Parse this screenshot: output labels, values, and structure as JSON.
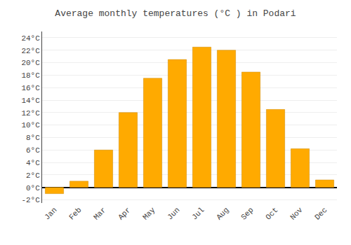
{
  "chart_data": {
    "type": "bar",
    "title": "Average monthly temperatures (°C ) in Podari",
    "categories": [
      "Jan",
      "Feb",
      "Mar",
      "Apr",
      "May",
      "Jun",
      "Jul",
      "Aug",
      "Sep",
      "Oct",
      "Nov",
      "Dec"
    ],
    "values": [
      -1.0,
      1.0,
      6.0,
      12.0,
      17.5,
      20.5,
      22.5,
      22.0,
      18.5,
      12.5,
      6.2,
      1.2
    ],
    "color": "#FFAA00",
    "ylim": [
      -2.5,
      25
    ],
    "yticks": [
      {
        "value": -2,
        "label": "-2°C"
      },
      {
        "value": 0,
        "label": "0°C"
      },
      {
        "value": 2,
        "label": "2°C"
      },
      {
        "value": 4,
        "label": "4°C"
      },
      {
        "value": 6,
        "label": "6°C"
      },
      {
        "value": 8,
        "label": "8°C"
      },
      {
        "value": 10,
        "label": "10°C"
      },
      {
        "value": 12,
        "label": "12°C"
      },
      {
        "value": 14,
        "label": "14°C"
      },
      {
        "value": 16,
        "label": "16°C"
      },
      {
        "value": 18,
        "label": "18°C"
      },
      {
        "value": 20,
        "label": "20°C"
      },
      {
        "value": 22,
        "label": "22°C"
      },
      {
        "value": 24,
        "label": "24°C"
      }
    ],
    "grid": true
  }
}
